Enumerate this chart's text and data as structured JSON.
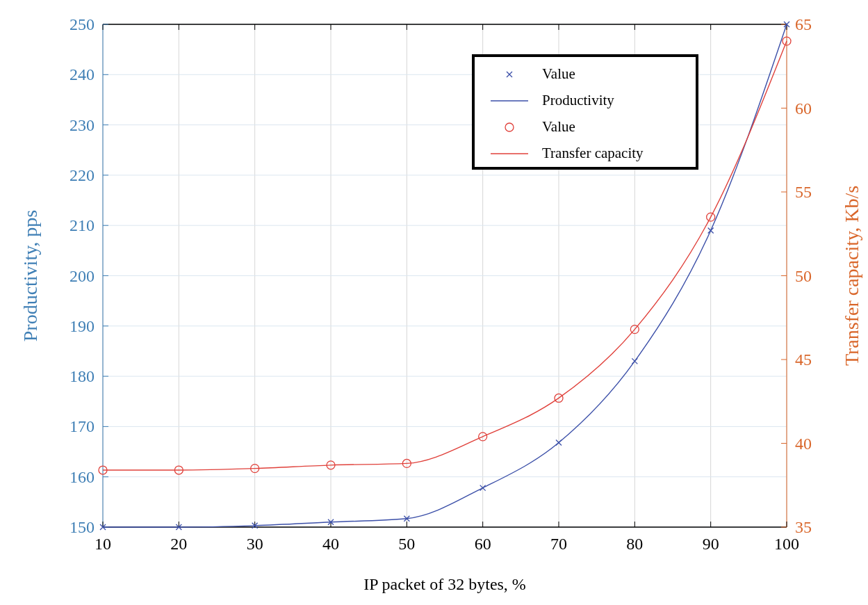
{
  "chart_data": {
    "type": "line",
    "xlabel": "IP packet of 32 bytes, %",
    "ylabel": "Productivity, pps",
    "y2label": "Transfer capacity, Kb/s",
    "x": [
      10,
      20,
      30,
      40,
      50,
      60,
      70,
      80,
      90,
      100
    ],
    "xlim": [
      10,
      100
    ],
    "xticks": [
      10,
      20,
      30,
      40,
      50,
      60,
      70,
      80,
      90,
      100
    ],
    "ylim": [
      150,
      250
    ],
    "yticks": [
      150,
      160,
      170,
      180,
      190,
      200,
      210,
      220,
      230,
      240,
      250
    ],
    "y2lim": [
      35,
      65
    ],
    "y2ticks": [
      35,
      40,
      45,
      50,
      55,
      60,
      65
    ],
    "grid": true,
    "legend": "top right",
    "series": [
      {
        "name": "Value",
        "type": "scatter",
        "marker": "cross",
        "color": "#3b4fa8",
        "values": [
          150,
          150,
          150.3,
          151,
          151.7,
          157.8,
          166.8,
          183,
          209,
          250
        ]
      },
      {
        "name": "Productivity",
        "marker": "none",
        "color": "#3b4fa8",
        "values": [
          150,
          150,
          150.3,
          151,
          151.7,
          157.8,
          166.8,
          183,
          209,
          250
        ]
      },
      {
        "name": "Value",
        "type": "scatter",
        "marker": "circle",
        "color": "#e0403a",
        "axis": "y2",
        "values": [
          38.4,
          38.4,
          38.5,
          38.7,
          38.8,
          40.4,
          42.7,
          46.8,
          53.5,
          64.0
        ]
      },
      {
        "name": "Transfer capacity",
        "marker": "none",
        "color": "#e0403a",
        "axis": "y2",
        "values": [
          38.4,
          38.4,
          38.5,
          38.7,
          38.8,
          40.4,
          42.7,
          46.8,
          53.5,
          64.0
        ]
      }
    ]
  }
}
